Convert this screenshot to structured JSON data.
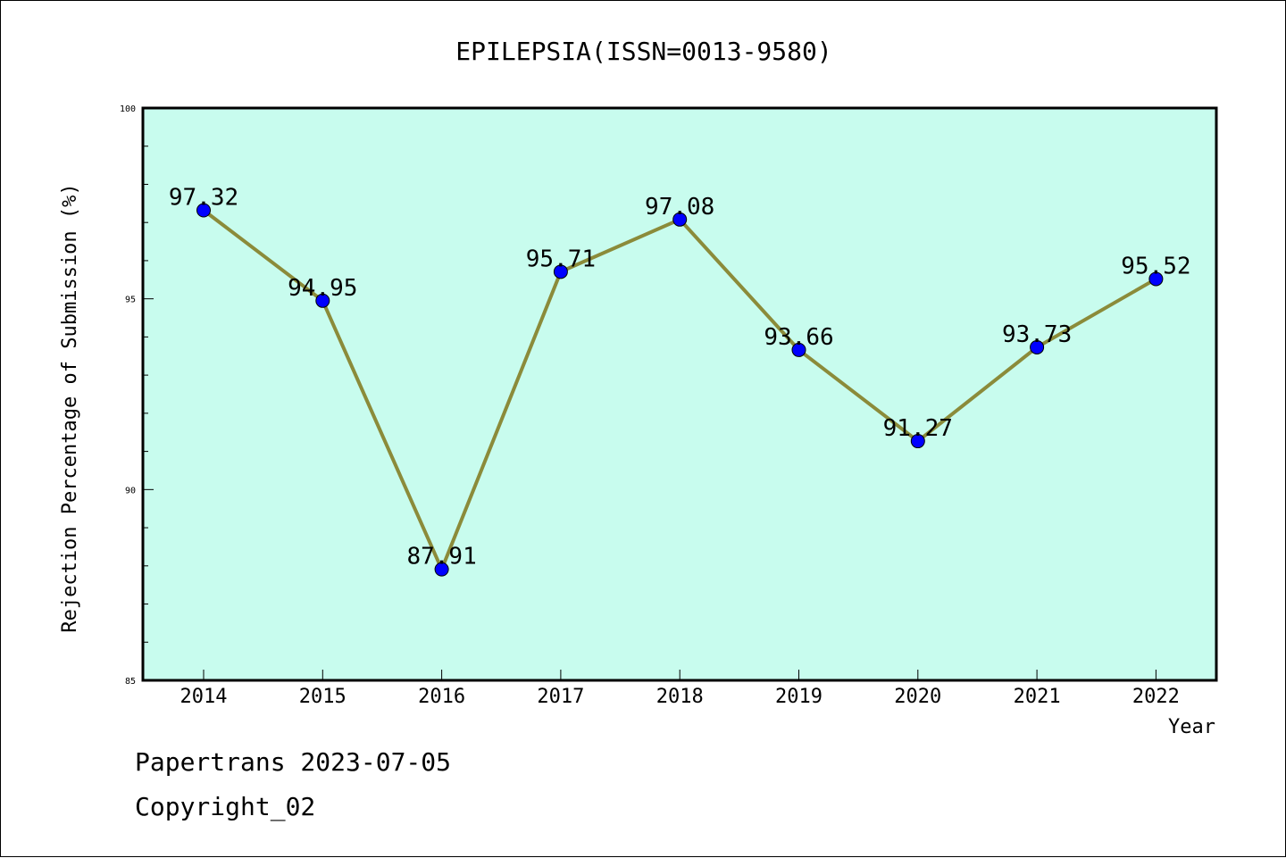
{
  "chart_data": {
    "type": "line",
    "title": "EPILEPSIA(ISSN=0013-9580)",
    "xlabel": "Year",
    "ylabel": "Rejection Percentage of Submission (%)",
    "categories": [
      "2014",
      "2015",
      "2016",
      "2017",
      "2018",
      "2019",
      "2020",
      "2021",
      "2022"
    ],
    "series": [
      {
        "values": [
          97.32,
          94.95,
          87.91,
          95.71,
          97.08,
          93.66,
          91.27,
          93.73,
          95.52
        ]
      }
    ],
    "data_labels": [
      "97.32",
      "94.95",
      "87.91",
      "95.71",
      "97.08",
      "93.66",
      "91.27",
      "93.73",
      "95.52"
    ],
    "ylim": [
      85,
      100
    ],
    "yticks": [
      "85",
      "90",
      "95",
      "100"
    ],
    "grid": false,
    "colors": {
      "plot_bg": "#c8fcee",
      "line": "#8b8b3a",
      "marker": "#0000ff"
    }
  },
  "footer": {
    "line1": "Papertrans 2023-07-05",
    "line2": "Copyright_02"
  }
}
